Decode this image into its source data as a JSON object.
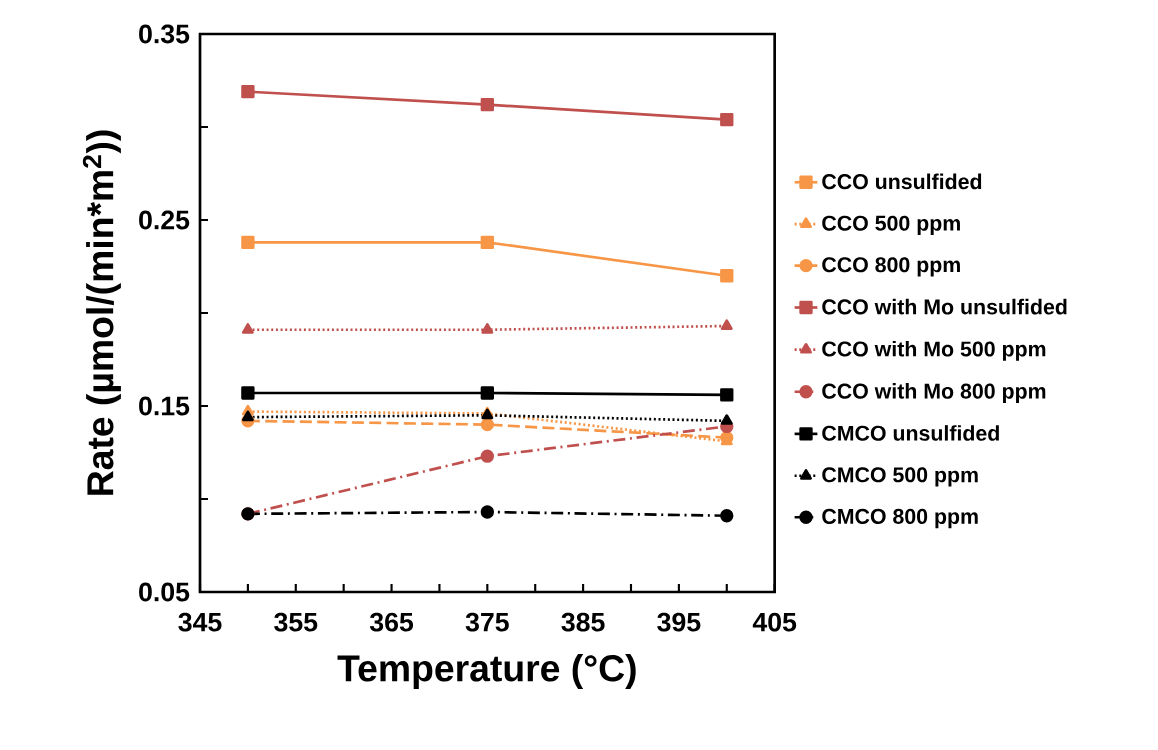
{
  "chart_data": {
    "type": "line",
    "xlabel": "Temperature (°C)",
    "ylabel": "Rate (µmol/(min*m$^{2}$))",
    "x": [
      350,
      375,
      400
    ],
    "xlim": [
      345,
      405
    ],
    "ylim": [
      0.05,
      0.35
    ],
    "xticks": [
      345,
      {
        "value": 350,
        "label": null
      },
      355,
      {
        "value": 360,
        "label": null
      },
      365,
      {
        "value": 370,
        "label": null
      },
      375,
      {
        "value": 380,
        "label": null
      },
      385,
      {
        "value": 390,
        "label": null
      },
      395,
      {
        "value": 400,
        "label": null
      },
      405
    ],
    "yticks": [
      0.05,
      {
        "value": 0.1,
        "label": null
      },
      0.15,
      {
        "value": 0.2,
        "label": null
      },
      0.25,
      {
        "value": 0.3,
        "label": null
      },
      0.35
    ],
    "legend": "right",
    "series": [
      {
        "name": "CCO unsulfided",
        "color": "#f79646",
        "marker": "square",
        "line_style": "solid",
        "values": [
          0.238,
          0.238,
          0.22
        ]
      },
      {
        "name": "CCO 500 ppm",
        "color": "#f79646",
        "marker": "triangle",
        "line_style": "dotted",
        "values": [
          0.147,
          0.146,
          0.131
        ]
      },
      {
        "name": "CCO 800 ppm",
        "color": "#f79646",
        "marker": "circle",
        "line_style": "dashed",
        "values": [
          0.142,
          0.14,
          0.133
        ]
      },
      {
        "name": "CCO with Mo unsulfided",
        "color": "#c0504d",
        "marker": "square",
        "line_style": "solid",
        "values": [
          0.319,
          0.312,
          0.304
        ]
      },
      {
        "name": "CCO with Mo 500 ppm",
        "color": "#c0504d",
        "marker": "triangle",
        "line_style": "dotted",
        "values": [
          0.191,
          0.191,
          0.193
        ]
      },
      {
        "name": "CCO with Mo 800 ppm",
        "color": "#c0504d",
        "marker": "circle",
        "line_style": "dashdot",
        "values": [
          0.092,
          0.123,
          0.139
        ]
      },
      {
        "name": "CMCO unsulfided",
        "color": "#000000",
        "marker": "square",
        "line_style": "solid",
        "values": [
          0.157,
          0.157,
          0.156
        ]
      },
      {
        "name": "CMCO 500 ppm",
        "color": "#000000",
        "marker": "triangle",
        "line_style": "dotted",
        "values": [
          0.144,
          0.145,
          0.142
        ]
      },
      {
        "name": "CMCO 800 ppm",
        "color": "#000000",
        "marker": "circle",
        "line_style": "dashdot",
        "values": [
          0.092,
          0.093,
          0.091
        ]
      }
    ]
  }
}
